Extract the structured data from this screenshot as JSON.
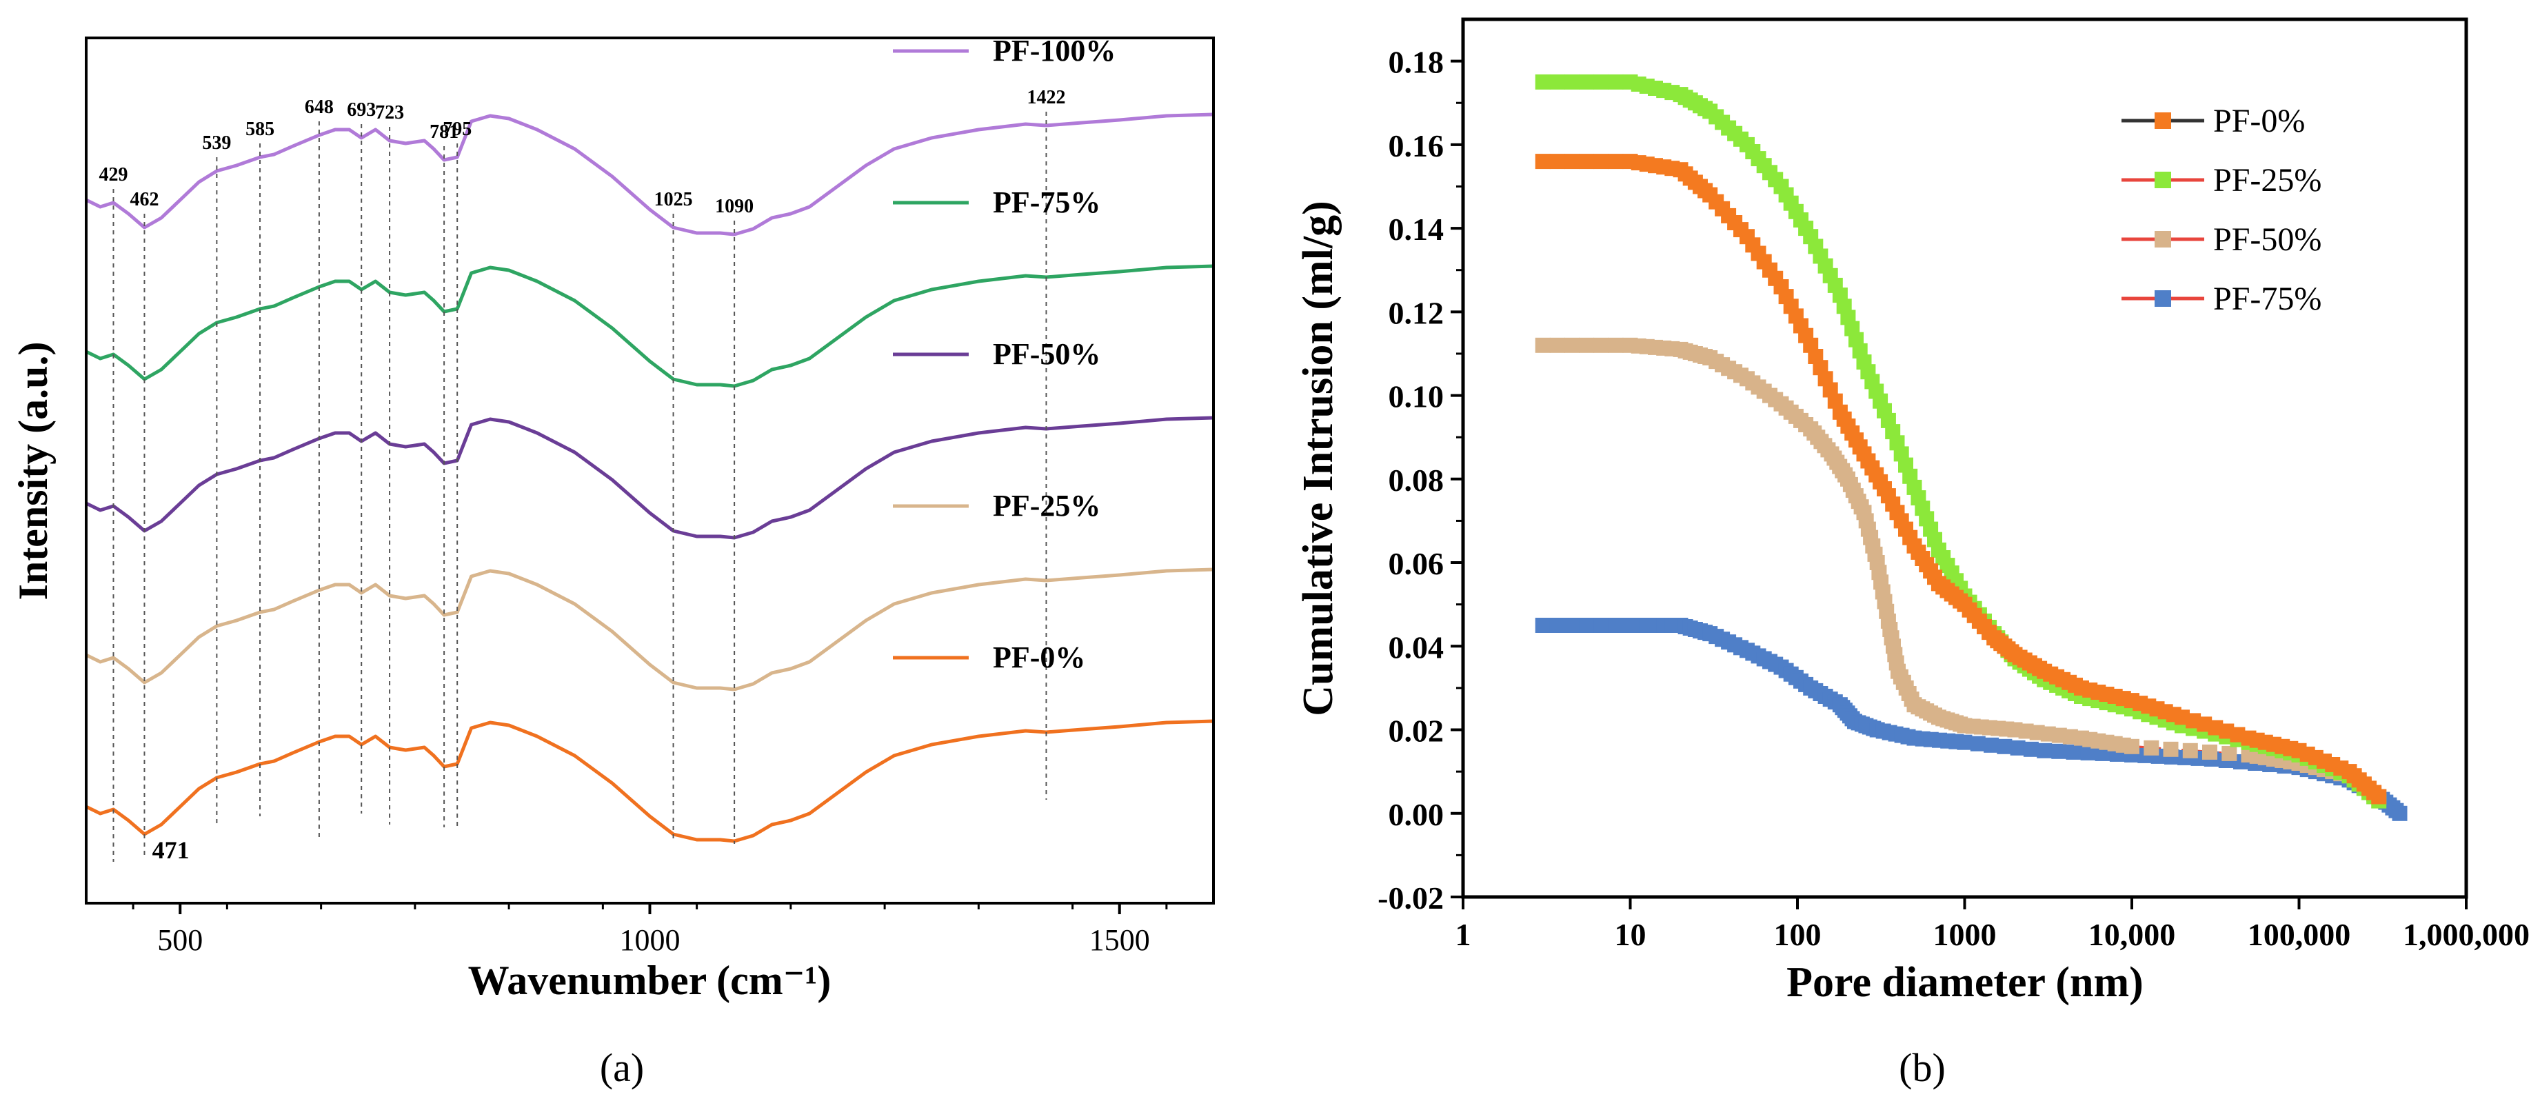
{
  "chart_data": [
    {
      "type": "line",
      "panel_label": "(a)",
      "title": "",
      "xlabel": "Wavenumber (cm⁻¹)",
      "ylabel": "Intensity (a.u.)",
      "xlim": [
        400,
        1600
      ],
      "xticks": [
        500,
        1000,
        1500
      ],
      "yticks": [],
      "peak_labels": [
        {
          "x": 429,
          "text": "429",
          "line_bottom": -0.05
        },
        {
          "x": 462,
          "text": "462",
          "line_bottom": -0.02
        },
        {
          "x": 539,
          "text": "539",
          "line_bottom": 0.2
        },
        {
          "x": 585,
          "text": "585",
          "line_bottom": 0.28
        },
        {
          "x": 648,
          "text": "648",
          "line_bottom": 0.1
        },
        {
          "x": 693,
          "text": "693",
          "line_bottom": 0.3
        },
        {
          "x": 723,
          "text": "723",
          "line_bottom": 0.22
        },
        {
          "x": 781,
          "text": "781",
          "line_bottom": 0.2
        },
        {
          "x": 795,
          "text": "795",
          "line_bottom": 0.18
        },
        {
          "x": 1025,
          "text": "1025",
          "line_bottom": 0.1
        },
        {
          "x": 1090,
          "text": "1090",
          "line_bottom": 0.08
        },
        {
          "x": 1422,
          "text": "1422",
          "line_bottom": 0.4
        }
      ],
      "extra_label": {
        "text": "471",
        "x": 490
      },
      "series": [
        {
          "name": "PF-100%",
          "color": "#B07AD8",
          "offset": 4.0
        },
        {
          "name": "PF-75%",
          "color": "#2EA562",
          "offset": 3.0
        },
        {
          "name": "PF-50%",
          "color": "#6A3D96",
          "offset": 2.0
        },
        {
          "name": "PF-25%",
          "color": "#D8B58C",
          "offset": 1.0
        },
        {
          "name": "PF-0%",
          "color": "#F0711F",
          "offset": 0.0
        }
      ],
      "shape": [
        [
          400,
          0.35
        ],
        [
          415,
          0.3
        ],
        [
          429,
          0.33
        ],
        [
          445,
          0.25
        ],
        [
          462,
          0.15
        ],
        [
          480,
          0.22
        ],
        [
          500,
          0.35
        ],
        [
          520,
          0.48
        ],
        [
          539,
          0.56
        ],
        [
          560,
          0.6
        ],
        [
          585,
          0.66
        ],
        [
          600,
          0.68
        ],
        [
          620,
          0.74
        ],
        [
          648,
          0.82
        ],
        [
          665,
          0.86
        ],
        [
          680,
          0.86
        ],
        [
          693,
          0.8
        ],
        [
          708,
          0.86
        ],
        [
          723,
          0.78
        ],
        [
          740,
          0.76
        ],
        [
          760,
          0.78
        ],
        [
          770,
          0.72
        ],
        [
          781,
          0.64
        ],
        [
          795,
          0.66
        ],
        [
          810,
          0.92
        ],
        [
          830,
          0.96
        ],
        [
          850,
          0.94
        ],
        [
          880,
          0.86
        ],
        [
          920,
          0.72
        ],
        [
          960,
          0.52
        ],
        [
          1000,
          0.28
        ],
        [
          1025,
          0.15
        ],
        [
          1050,
          0.11
        ],
        [
          1075,
          0.11
        ],
        [
          1090,
          0.1
        ],
        [
          1110,
          0.14
        ],
        [
          1130,
          0.22
        ],
        [
          1150,
          0.25
        ],
        [
          1170,
          0.3
        ],
        [
          1200,
          0.45
        ],
        [
          1230,
          0.6
        ],
        [
          1260,
          0.72
        ],
        [
          1300,
          0.8
        ],
        [
          1350,
          0.86
        ],
        [
          1400,
          0.9
        ],
        [
          1422,
          0.89
        ],
        [
          1460,
          0.91
        ],
        [
          1500,
          0.93
        ],
        [
          1550,
          0.96
        ],
        [
          1600,
          0.97
        ]
      ]
    },
    {
      "type": "scatter",
      "panel_label": "(b)",
      "title": "",
      "xlabel": "Pore diameter (nm)",
      "ylabel": "Cumulative Intrusion (ml/g)",
      "xscale": "log",
      "xlim": [
        1,
        1000000
      ],
      "ylim": [
        -0.02,
        0.19
      ],
      "xticks": [
        1,
        10,
        100,
        1000,
        10000,
        100000,
        1000000
      ],
      "xticklabels": [
        "1",
        "10",
        "100",
        "1000",
        "10,000",
        "100,000",
        "1,000,000"
      ],
      "yticks": [
        -0.02,
        0.0,
        0.02,
        0.04,
        0.06,
        0.08,
        0.1,
        0.12,
        0.14,
        0.16,
        0.18
      ],
      "yticklabels": [
        "-0.02",
        "0.00",
        "0.02",
        "0.04",
        "0.06",
        "0.08",
        "0.10",
        "0.12",
        "0.14",
        "0.16",
        "0.18"
      ],
      "legend_position": "top-right",
      "series": [
        {
          "name": "PF-0%",
          "marker_color": "#F47A20",
          "line_color": "#333333",
          "points": [
            [
              3,
              0.156
            ],
            [
              10,
              0.156
            ],
            [
              20,
              0.154
            ],
            [
              30,
              0.148
            ],
            [
              50,
              0.138
            ],
            [
              80,
              0.126
            ],
            [
              120,
              0.112
            ],
            [
              180,
              0.096
            ],
            [
              250,
              0.086
            ],
            [
              350,
              0.076
            ],
            [
              500,
              0.064
            ],
            [
              700,
              0.055
            ],
            [
              1000,
              0.05
            ],
            [
              1500,
              0.042
            ],
            [
              2000,
              0.038
            ],
            [
              3000,
              0.034
            ],
            [
              5000,
              0.03
            ],
            [
              10000,
              0.027
            ],
            [
              20000,
              0.023
            ],
            [
              50000,
              0.018
            ],
            [
              100000,
              0.015
            ],
            [
              200000,
              0.01
            ],
            [
              300000,
              0.004
            ]
          ]
        },
        {
          "name": "PF-25%",
          "marker_color": "#8CE83A",
          "line_color": "#E8453C",
          "points": [
            [
              3,
              0.175
            ],
            [
              10,
              0.175
            ],
            [
              20,
              0.172
            ],
            [
              30,
              0.168
            ],
            [
              50,
              0.16
            ],
            [
              80,
              0.15
            ],
            [
              120,
              0.138
            ],
            [
              180,
              0.124
            ],
            [
              250,
              0.108
            ],
            [
              350,
              0.094
            ],
            [
              500,
              0.078
            ],
            [
              700,
              0.063
            ],
            [
              1000,
              0.052
            ],
            [
              1500,
              0.043
            ],
            [
              2000,
              0.037
            ],
            [
              3000,
              0.032
            ],
            [
              5000,
              0.028
            ],
            [
              10000,
              0.025
            ],
            [
              20000,
              0.021
            ],
            [
              50000,
              0.017
            ],
            [
              100000,
              0.014
            ],
            [
              200000,
              0.009
            ],
            [
              300000,
              0.003
            ]
          ]
        },
        {
          "name": "PF-50%",
          "marker_color": "#D8B38A",
          "line_color": "#E8453C",
          "points": [
            [
              3,
              0.112
            ],
            [
              10,
              0.112
            ],
            [
              20,
              0.111
            ],
            [
              30,
              0.109
            ],
            [
              50,
              0.104
            ],
            [
              80,
              0.098
            ],
            [
              120,
              0.092
            ],
            [
              160,
              0.086
            ],
            [
              200,
              0.08
            ],
            [
              250,
              0.072
            ],
            [
              300,
              0.06
            ],
            [
              350,
              0.046
            ],
            [
              400,
              0.034
            ],
            [
              500,
              0.026
            ],
            [
              700,
              0.023
            ],
            [
              1000,
              0.021
            ],
            [
              2000,
              0.02
            ],
            [
              5000,
              0.018
            ],
            [
              10000,
              0.016
            ],
            [
              50000,
              0.014
            ],
            [
              100000,
              0.012
            ],
            [
              200000,
              0.009
            ],
            [
              300000,
              0.004
            ]
          ]
        },
        {
          "name": "PF-75%",
          "marker_color": "#4F7FC8",
          "line_color": "#E8453C",
          "points": [
            [
              3,
              0.045
            ],
            [
              10,
              0.045
            ],
            [
              20,
              0.045
            ],
            [
              30,
              0.043
            ],
            [
              50,
              0.039
            ],
            [
              80,
              0.035
            ],
            [
              120,
              0.03
            ],
            [
              180,
              0.026
            ],
            [
              220,
              0.022
            ],
            [
              300,
              0.02
            ],
            [
              500,
              0.018
            ],
            [
              1000,
              0.017
            ],
            [
              3000,
              0.015
            ],
            [
              10000,
              0.014
            ],
            [
              30000,
              0.013
            ],
            [
              100000,
              0.011
            ],
            [
              200000,
              0.008
            ],
            [
              300000,
              0.004
            ],
            [
              400000,
              0.0
            ]
          ]
        }
      ]
    }
  ]
}
